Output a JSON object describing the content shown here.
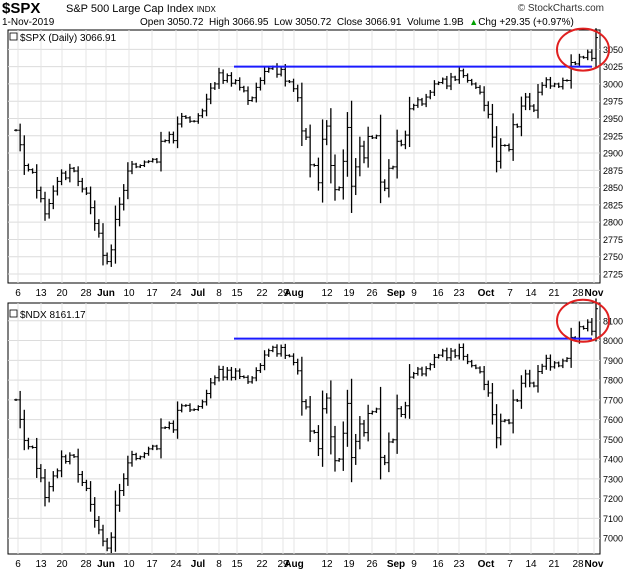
{
  "header": {
    "symbol": "$SPX",
    "name": "S&P 500 Large Cap Index",
    "exchange": "INDX",
    "date": "1-Nov-2019",
    "open_label": "Open",
    "open": "3050.72",
    "high_label": "High",
    "high": "3066.95",
    "low_label": "Low",
    "low": "3050.72",
    "close_label": "Close",
    "close": "3066.91",
    "volume_label": "Volume",
    "volume": "1.9B",
    "chg_label": "Chg",
    "chg": "+29.35 (+0.97%)",
    "logo": "© StockCharts.com",
    "arrow_icon": "up-arrow-icon"
  },
  "chart_data": [
    {
      "type": "ohlc",
      "legend": "$SPX (Daily) 3066.91",
      "x_labels": [
        "6",
        "13",
        "20",
        "28",
        "Jun",
        "10",
        "17",
        "24",
        "Jul",
        "8",
        "15",
        "22",
        "29",
        "Aug",
        "12",
        "19",
        "26",
        "Sep",
        "9",
        "16",
        "23",
        "Oct",
        "7",
        "14",
        "21",
        "28",
        "Nov"
      ],
      "y_ticks": [
        2725,
        2750,
        2775,
        2800,
        2825,
        2850,
        2875,
        2900,
        2925,
        2950,
        2975,
        3000,
        3025,
        3050
      ],
      "ylim": [
        2712,
        3078
      ],
      "closes": [
        2933,
        2912,
        2882,
        2876,
        2872,
        2846,
        2834,
        2812,
        2827,
        2845,
        2859,
        2871,
        2864,
        2878,
        2874,
        2859,
        2848,
        2842,
        2821,
        2798,
        2784,
        2752,
        2743,
        2760,
        2804,
        2826,
        2846,
        2874,
        2884,
        2880,
        2882,
        2887,
        2888,
        2891,
        2887,
        2917,
        2918,
        2927,
        2918,
        2942,
        2953,
        2951,
        2946,
        2946,
        2954,
        2961,
        2978,
        2994,
        3000,
        3016,
        3005,
        3012,
        3001,
        3005,
        2995,
        2990,
        2976,
        2980,
        2995,
        3005,
        3018,
        3022,
        3025,
        3014,
        3021,
        3004,
        3003,
        2993,
        2980,
        2932,
        2923,
        2883,
        2882,
        2857,
        2920,
        2939,
        2882,
        2847,
        2850,
        2888,
        2937,
        2852,
        2880,
        2910,
        2893,
        2924,
        2922,
        2925,
        2858,
        2849,
        2878,
        2880,
        2917,
        2912,
        2926,
        2964,
        2969,
        2977,
        2971,
        2981,
        2988,
        3000,
        3002,
        3007,
        2997,
        3010,
        3006,
        3019,
        3012,
        3005,
        3000,
        2995,
        2988,
        2969,
        2956,
        2923,
        2888,
        2911,
        2911,
        2905,
        2941,
        2938,
        2968,
        2981,
        2968,
        2962,
        2988,
        2998,
        3006,
        2997,
        3000,
        2996,
        3005,
        3005,
        3031,
        3029,
        3039,
        3038,
        3046,
        3037,
        3067
      ],
      "resistance": 3025,
      "circle_note": "red circle highlighting breakout"
    },
    {
      "type": "ohlc",
      "legend": "$NDX 8161.17",
      "x_labels": [
        "6",
        "13",
        "20",
        "28",
        "Jun",
        "10",
        "17",
        "24",
        "Jul",
        "8",
        "15",
        "22",
        "29",
        "Aug",
        "12",
        "19",
        "26",
        "Sep",
        "9",
        "16",
        "23",
        "Oct",
        "7",
        "14",
        "21",
        "28",
        "Nov"
      ],
      "y_ticks": [
        7000,
        7100,
        7200,
        7300,
        7400,
        7500,
        7600,
        7700,
        7800,
        7900,
        8000,
        8100
      ],
      "ylim": [
        6920,
        8190
      ],
      "closes": [
        7700,
        7601,
        7494,
        7463,
        7459,
        7353,
        7305,
        7206,
        7261,
        7315,
        7341,
        7412,
        7388,
        7420,
        7412,
        7322,
        7282,
        7252,
        7171,
        7090,
        7042,
        6985,
        6950,
        7005,
        7167,
        7241,
        7301,
        7381,
        7423,
        7403,
        7412,
        7428,
        7452,
        7466,
        7452,
        7558,
        7560,
        7581,
        7548,
        7647,
        7670,
        7672,
        7649,
        7651,
        7666,
        7690,
        7732,
        7786,
        7812,
        7854,
        7815,
        7850,
        7814,
        7846,
        7818,
        7814,
        7791,
        7811,
        7848,
        7874,
        7927,
        7949,
        7966,
        7933,
        7965,
        7925,
        7921,
        7889,
        7847,
        7691,
        7664,
        7542,
        7535,
        7453,
        7655,
        7709,
        7513,
        7392,
        7400,
        7531,
        7682,
        7408,
        7490,
        7578,
        7534,
        7631,
        7640,
        7654,
        7409,
        7382,
        7487,
        7498,
        7655,
        7626,
        7670,
        7815,
        7833,
        7856,
        7831,
        7858,
        7878,
        7915,
        7926,
        7948,
        7913,
        7947,
        7923,
        7965,
        7920,
        7893,
        7873,
        7861,
        7842,
        7778,
        7735,
        7625,
        7508,
        7592,
        7597,
        7583,
        7699,
        7695,
        7784,
        7831,
        7785,
        7770,
        7843,
        7870,
        7910,
        7867,
        7887,
        7872,
        7897,
        7910,
        8016,
        8011,
        8070,
        8061,
        8093,
        8047,
        8161
      ],
      "resistance": 8010,
      "circle_note": "red circle highlighting breakout"
    }
  ]
}
